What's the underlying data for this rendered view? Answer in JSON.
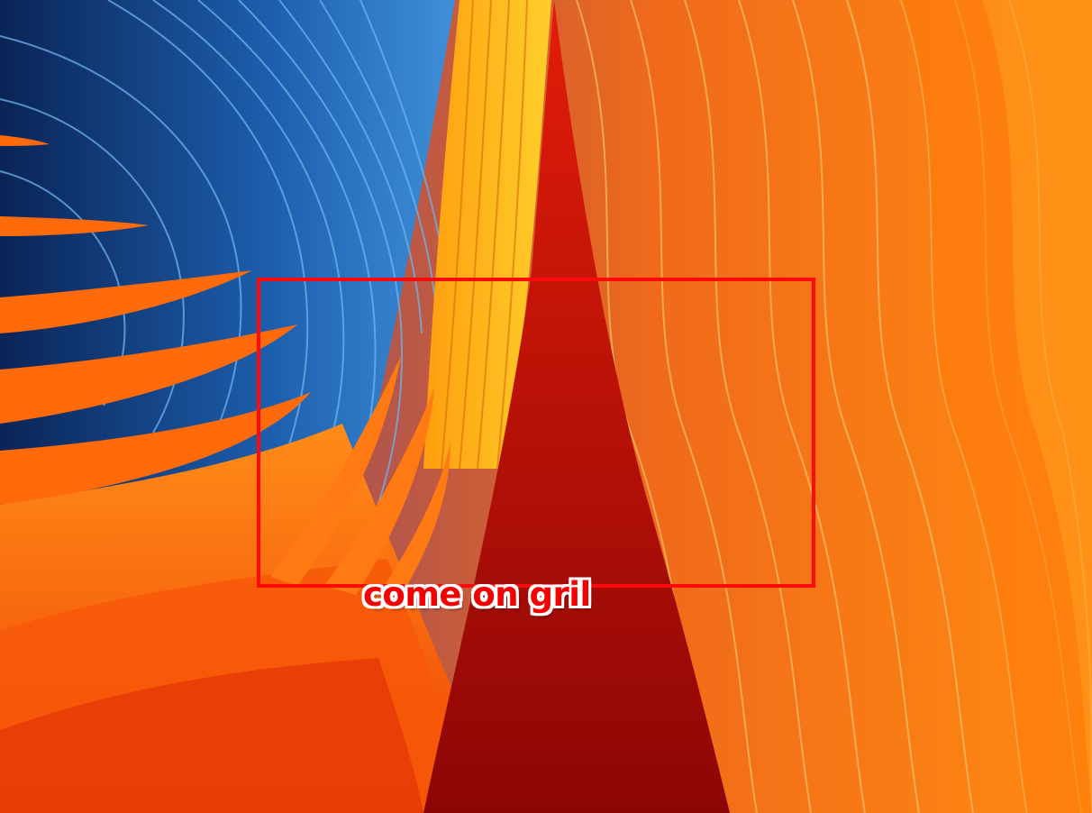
{
  "annotation": {
    "label": "come on gril",
    "color": "#ff0a0a"
  },
  "wallpaper": {
    "colors": {
      "blue_dark": "#0b2a5c",
      "blue": "#1e63b8",
      "blue_light": "#5fa8e8",
      "orange": "#ff7a0a",
      "orange_deep": "#f04a05",
      "red": "#c4140a",
      "crimson": "#9a0a08",
      "mauve": "#8a5266",
      "gold": "#ffb21a"
    }
  }
}
